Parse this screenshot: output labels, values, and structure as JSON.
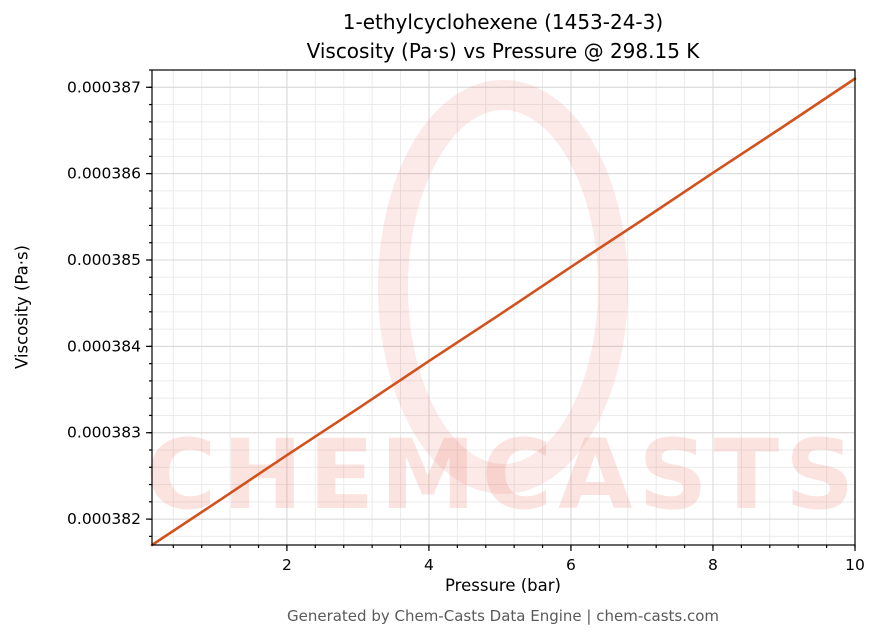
{
  "page": {
    "background": "#ffffff"
  },
  "chart": {
    "title_line1": "1-ethylcyclohexene (1453-24-3)",
    "title_line2": "Viscosity (Pa·s) vs Pressure @ 298.15 K"
  },
  "watermark": {
    "text": "CHEMCASTS",
    "color": "#e8604c"
  },
  "footer": {
    "text": "Generated by Chem-Casts Data Engine | chem-casts.com"
  },
  "chart_data": {
    "type": "line",
    "title": "1-ethylcyclohexene (1453-24-3) — Viscosity (Pa·s) vs Pressure @ 298.15 K",
    "xlabel": "Pressure (bar)",
    "ylabel": "Viscosity (Pa·s)",
    "x": [
      0.1,
      1,
      2,
      3,
      4,
      5,
      6,
      7,
      8,
      9,
      10
    ],
    "y": [
      0.0003817,
      0.00038219,
      0.00038274,
      0.00038328,
      0.00038383,
      0.00038437,
      0.00038492,
      0.00038546,
      0.00038601,
      0.00038655,
      0.0003871
    ],
    "xlim": [
      0.1,
      10
    ],
    "ylim": [
      0.0003817,
      0.0003872
    ],
    "xticks": [
      2,
      4,
      6,
      8,
      10
    ],
    "xtick_labels": [
      "2",
      "4",
      "6",
      "8",
      "10"
    ],
    "yticks": [
      0.000382,
      0.000383,
      0.000384,
      0.000385,
      0.000386,
      0.000387
    ],
    "ytick_labels": [
      "0.000382",
      "0.000383",
      "0.000384",
      "0.000385",
      "0.000386",
      "0.000387"
    ],
    "x_minor_step": 0.4,
    "y_minor_step": 2e-07,
    "grid": true,
    "legend": "none",
    "line_color": "#d2521e",
    "line_width": 2.6,
    "major_grid_color": "#d7d7d7",
    "minor_grid_color": "#ebebeb",
    "spine_color": "#000000"
  }
}
